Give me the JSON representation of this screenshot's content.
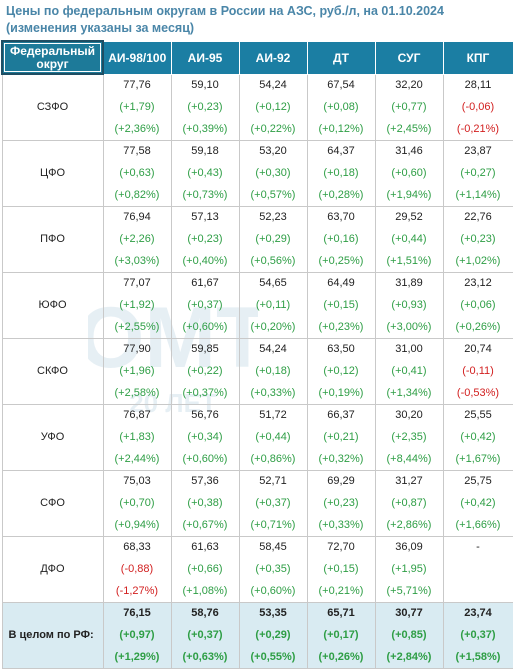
{
  "title": "Цены по федеральным округам в России на АЗС, руб./л, на 01.10.2024 (изменения указаны за месяц)",
  "watermark": {
    "text_top": "ОМТ",
    "text_bottom": "20 ЛЕТ"
  },
  "header": {
    "corner_label": "Федеральный округ",
    "columns": [
      "АИ-98/100",
      "АИ-95",
      "АИ-92",
      "ДТ",
      "СУГ",
      "КПГ"
    ]
  },
  "rows": [
    {
      "region": "СЗФО",
      "price": [
        "77,76",
        "59,10",
        "54,24",
        "67,54",
        "32,20",
        "28,11"
      ],
      "abs": [
        "(+1,79)",
        "(+0,23)",
        "(+0,12)",
        "(+0,08)",
        "(+0,77)",
        "(-0,06)"
      ],
      "pct": [
        "(+2,36%)",
        "(+0,39%)",
        "(+0,22%)",
        "(+0,12%)",
        "(+2,45%)",
        "(-0,21%)"
      ]
    },
    {
      "region": "ЦФО",
      "price": [
        "77,58",
        "59,18",
        "53,20",
        "64,37",
        "31,46",
        "23,87"
      ],
      "abs": [
        "(+0,63)",
        "(+0,43)",
        "(+0,30)",
        "(+0,18)",
        "(+0,60)",
        "(+0,27)"
      ],
      "pct": [
        "(+0,82%)",
        "(+0,73%)",
        "(+0,57%)",
        "(+0,28%)",
        "(+1,94%)",
        "(+1,14%)"
      ]
    },
    {
      "region": "ПФО",
      "price": [
        "76,94",
        "57,13",
        "52,23",
        "63,70",
        "29,52",
        "22,76"
      ],
      "abs": [
        "(+2,26)",
        "(+0,23)",
        "(+0,29)",
        "(+0,16)",
        "(+0,44)",
        "(+0,23)"
      ],
      "pct": [
        "(+3,03%)",
        "(+0,40%)",
        "(+0,56%)",
        "(+0,25%)",
        "(+1,51%)",
        "(+1,02%)"
      ]
    },
    {
      "region": "ЮФО",
      "price": [
        "77,07",
        "61,67",
        "54,65",
        "64,49",
        "31,89",
        "23,12"
      ],
      "abs": [
        "(+1,92)",
        "(+0,37)",
        "(+0,11)",
        "(+0,15)",
        "(+0,93)",
        "(+0,06)"
      ],
      "pct": [
        "(+2,55%)",
        "(+0,60%)",
        "(+0,20%)",
        "(+0,23%)",
        "(+3,00%)",
        "(+0,26%)"
      ]
    },
    {
      "region": "СКФО",
      "price": [
        "77,90",
        "59,85",
        "54,24",
        "63,50",
        "31,00",
        "20,74"
      ],
      "abs": [
        "(+1,96)",
        "(+0,22)",
        "(+0,18)",
        "(+0,12)",
        "(+0,41)",
        "(-0,11)"
      ],
      "pct": [
        "(+2,58%)",
        "(+0,37%)",
        "(+0,33%)",
        "(+0,19%)",
        "(+1,34%)",
        "(-0,53%)"
      ]
    },
    {
      "region": "УФО",
      "price": [
        "76,87",
        "56,76",
        "51,72",
        "66,37",
        "30,20",
        "25,55"
      ],
      "abs": [
        "(+1,83)",
        "(+0,34)",
        "(+0,44)",
        "(+0,21)",
        "(+2,35)",
        "(+0,42)"
      ],
      "pct": [
        "(+2,44%)",
        "(+0,60%)",
        "(+0,86%)",
        "(+0,32%)",
        "(+8,44%)",
        "(+1,67%)"
      ]
    },
    {
      "region": "СФО",
      "price": [
        "75,03",
        "57,36",
        "52,71",
        "69,29",
        "31,27",
        "25,75"
      ],
      "abs": [
        "(+0,70)",
        "(+0,38)",
        "(+0,37)",
        "(+0,23)",
        "(+0,87)",
        "(+0,42)"
      ],
      "pct": [
        "(+0,94%)",
        "(+0,67%)",
        "(+0,71%)",
        "(+0,33%)",
        "(+2,86%)",
        "(+1,66%)"
      ]
    },
    {
      "region": "ДФО",
      "price": [
        "68,33",
        "61,63",
        "58,45",
        "72,70",
        "36,09",
        "-"
      ],
      "abs": [
        "(-0,88)",
        "(+0,66)",
        "(+0,35)",
        "(+0,15)",
        "(+1,95)",
        ""
      ],
      "pct": [
        "(-1,27%)",
        "(+1,08%)",
        "(+0,60%)",
        "(+0,21%)",
        "(+5,71%)",
        ""
      ]
    }
  ],
  "total": {
    "region": "В целом по РФ:",
    "price": [
      "76,15",
      "58,76",
      "53,35",
      "65,71",
      "30,77",
      "23,74"
    ],
    "abs": [
      "(+0,97)",
      "(+0,37)",
      "(+0,29)",
      "(+0,17)",
      "(+0,85)",
      "(+0,37)"
    ],
    "pct": [
      "(+1,29%)",
      "(+0,63%)",
      "(+0,55%)",
      "(+0,26%)",
      "(+2,84%)",
      "(+1,58%)"
    ]
  },
  "colors": {
    "header_bg": "#1b7ea3",
    "positive": "#2e9e45",
    "negative": "#d21f1f",
    "total_bg": "#d9ebf2",
    "title": "#4a86a8"
  }
}
